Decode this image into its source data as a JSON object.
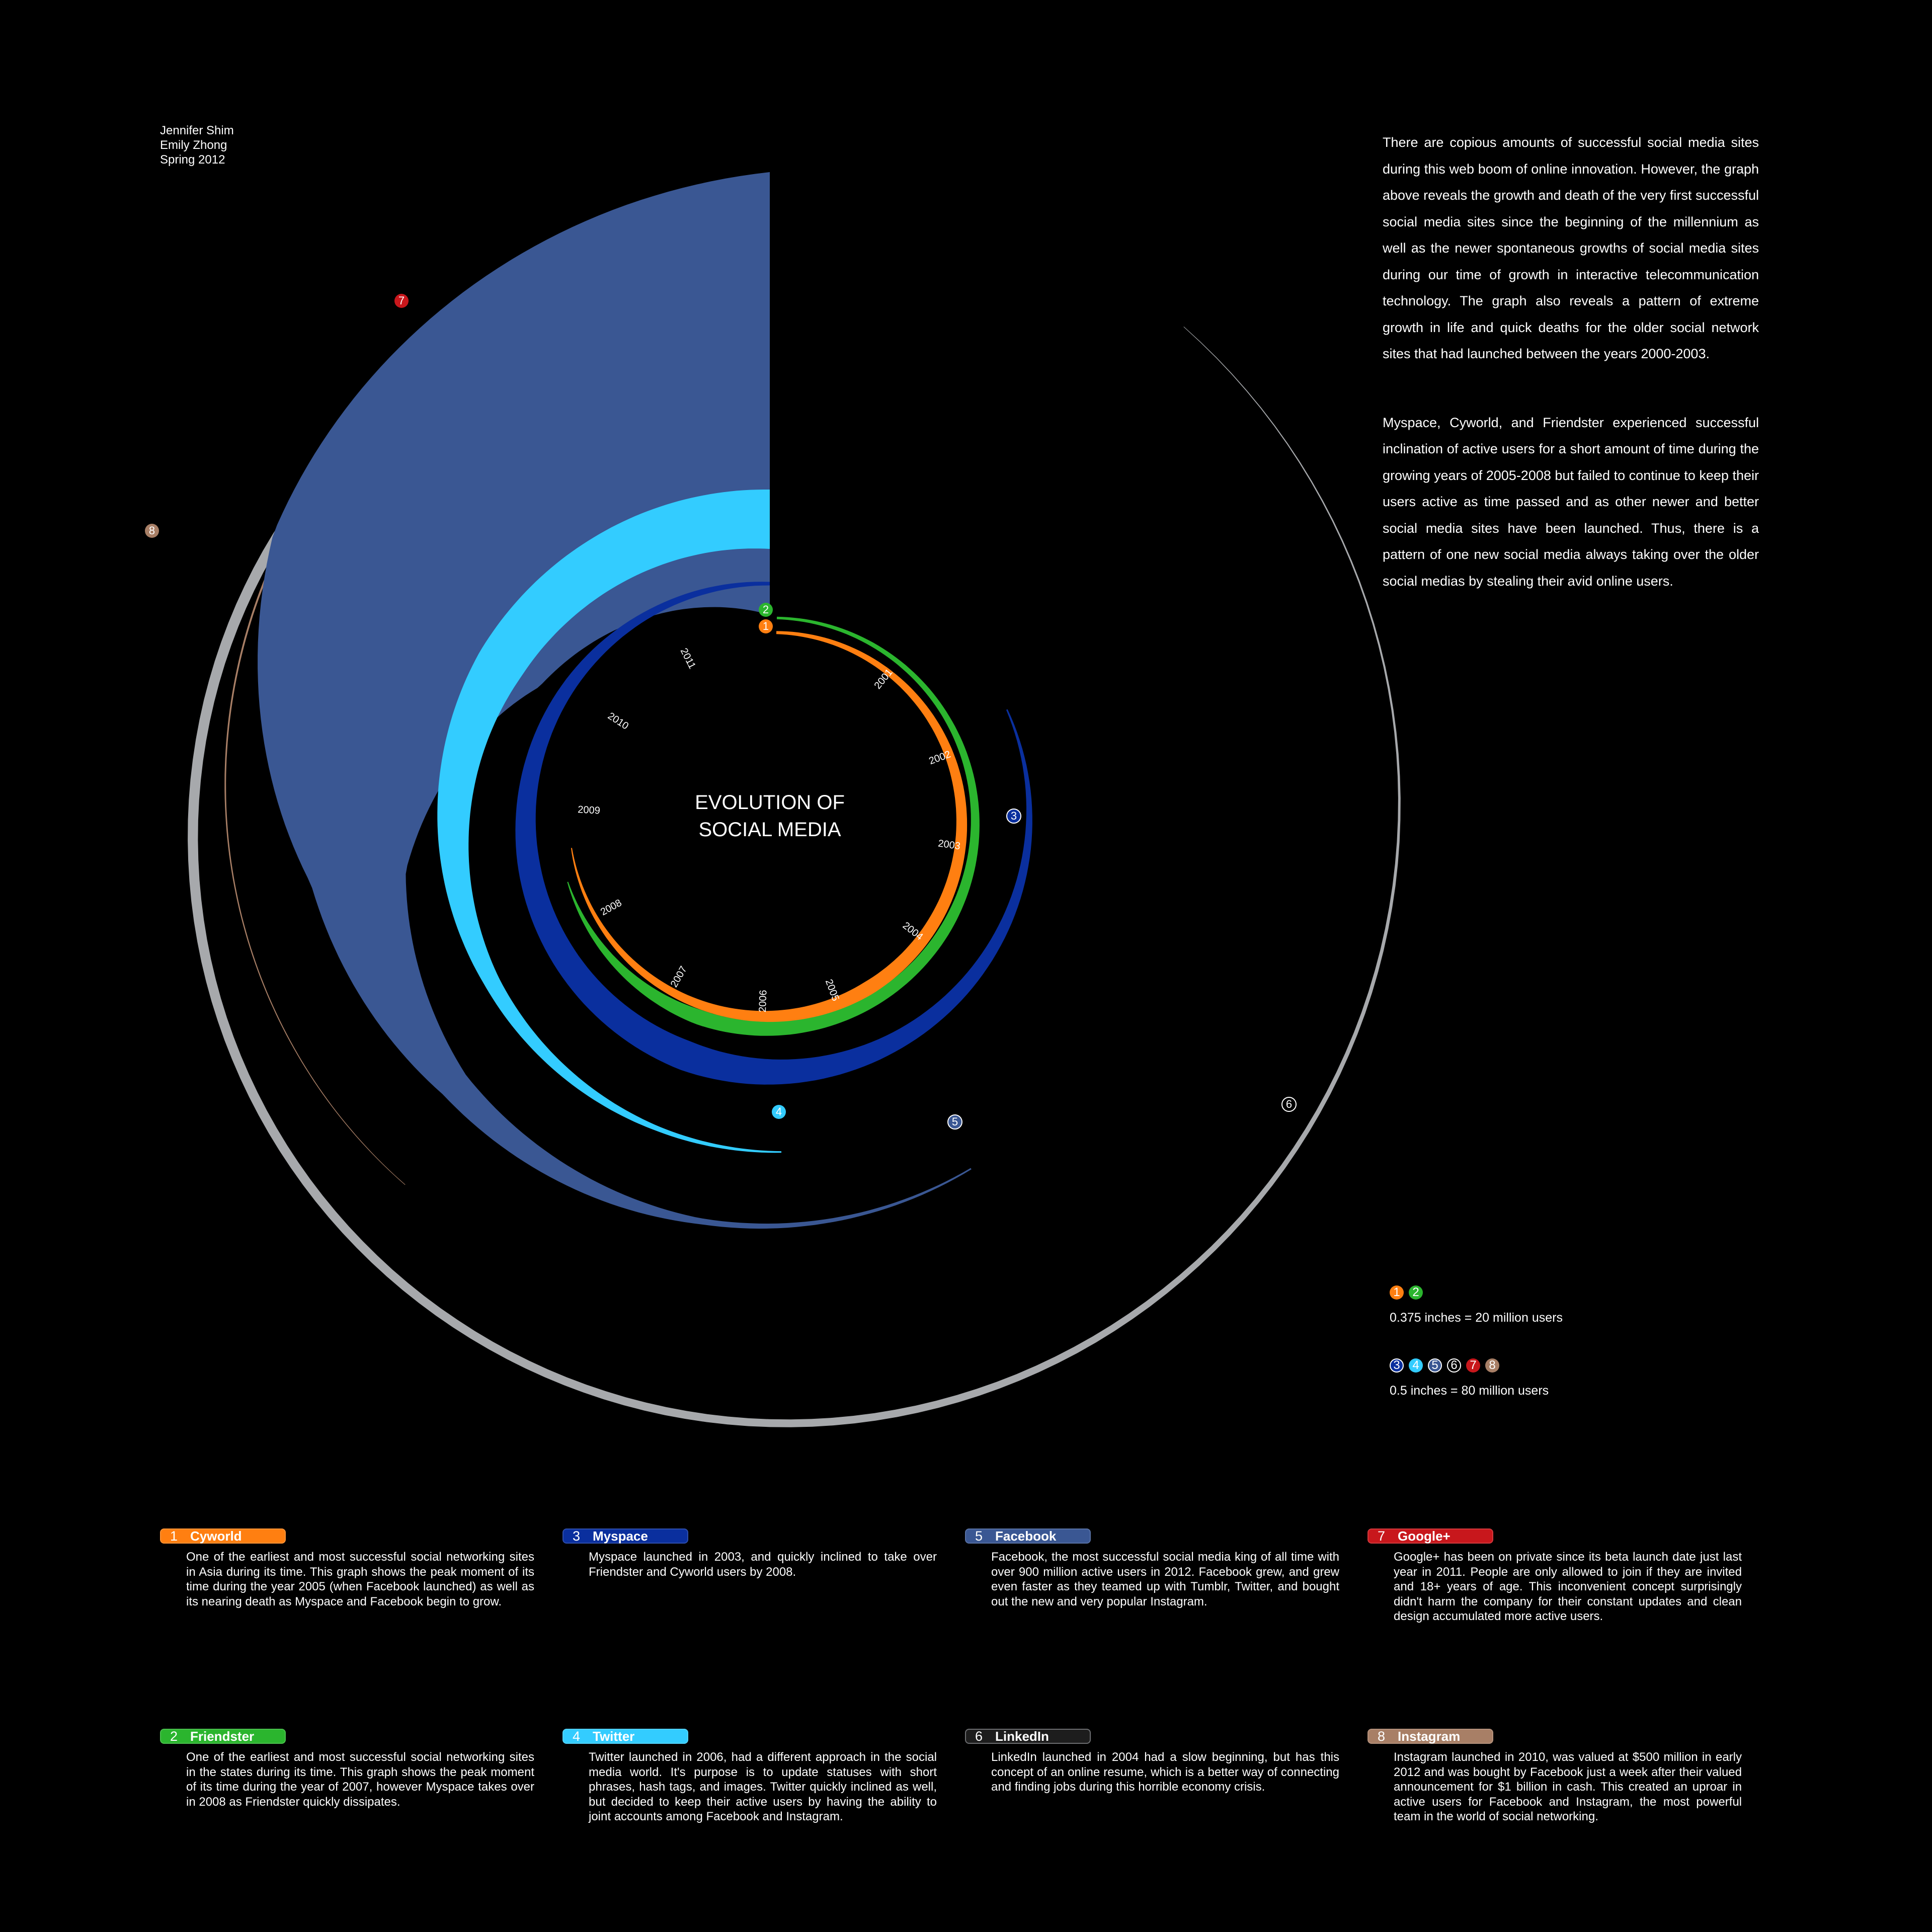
{
  "credits": [
    "Jennifer Shim",
    "Emily Zhong",
    "Spring 2012"
  ],
  "title": [
    "EVOLUTION OF",
    "SOCIAL MEDIA"
  ],
  "years": [
    "2001",
    "2002",
    "2003",
    "2004",
    "2005",
    "2006",
    "2007",
    "2008",
    "2009",
    "2010",
    "2011"
  ],
  "intro": [
    "There are copious amounts of successful social media sites during this web boom of online innovation. However, the graph above reveals the growth and death of the very first successful social media sites since the beginning of the millennium as well as the newer spontaneous growths of social media sites during our time of growth in interactive telecommunication technology. The graph also reveals a pattern of extreme growth in life and quick deaths for the older social network sites that had launched between the years 2000-2003.",
    "Myspace, Cyworld, and Friendster experienced successful inclination of active users for a short amount of time during the growing years of 2005-2008 but failed to continue to keep their users active as time passed and as other newer and better social media sites have been launched. Thus, there is a pattern of one new social media always taking over the older social medias by stealing their avid online users."
  ],
  "scale": [
    {
      "markers": [
        "1",
        "2"
      ],
      "text": "0.375 inches = 20 million users"
    },
    {
      "markers": [
        "3",
        "4",
        "5",
        "6",
        "7",
        "8"
      ],
      "text": "0.5 inches = 80 million users"
    }
  ],
  "colors": {
    "1": "#ff7f11",
    "2": "#2bb52e",
    "3": "#0a2f9e",
    "4": "#33ccff",
    "5": "#3a5793",
    "6": "#a7a9ac",
    "7": "#c8171c",
    "8": "#a87f66"
  },
  "sites": [
    {
      "num": "1",
      "name": "Cyworld",
      "desc": "One of the earliest and most successful social networking sites in Asia during its time. This graph shows the peak moment of its time during the year 2005 (when Facebook launched) as well as its nearing death as Myspace and Facebook begin to grow."
    },
    {
      "num": "2",
      "name": "Friendster",
      "desc": "One of the earliest and most successful social networking sites in the states during its time. This graph shows the peak moment of its time during the year of 2007, however Myspace takes over in 2008 as Friendster quickly dissipates."
    },
    {
      "num": "3",
      "name": "Myspace",
      "desc": "Myspace launched in 2003, and quickly inclined to take over Friendster and Cyworld users by 2008."
    },
    {
      "num": "4",
      "name": "Twitter",
      "desc": "Twitter launched in 2006, had a different approach in the social media world. It's purpose is to update statuses with short phrases, hash tags, and images. Twitter quickly inclined as well, but decided to keep their active users by having the ability to joint accounts among Facebook and Instagram."
    },
    {
      "num": "5",
      "name": "Facebook",
      "desc": "Facebook, the most successful social media king of all time with over 900 million active users in 2012. Facebook grew, and grew even faster as they teamed up with Tumblr, Twitter, and bought out the new and very popular Instagram."
    },
    {
      "num": "6",
      "name": "LinkedIn",
      "desc": "LinkedIn launched in 2004 had a slow beginning, but has this concept of an online resume, which is a better way of connecting and finding jobs during this horrible economy crisis."
    },
    {
      "num": "7",
      "name": "Google+",
      "desc": "Google+ has been on private since its beta launch date just last year in 2011. People are only allowed to join if they are invited and 18+ years of age. This inconvenient concept surprisingly didn't harm the company for their constant updates and clean design accumulated more active users."
    },
    {
      "num": "8",
      "name": "Instagram",
      "desc": "Instagram launched in 2010, was valued at $500 million in early 2012 and was bought by Facebook just a week after their valued announcement for $1 billion in cash. This created an uproar in active users for Facebook and Instagram, the most powerful team in the world of social networking."
    }
  ]
}
